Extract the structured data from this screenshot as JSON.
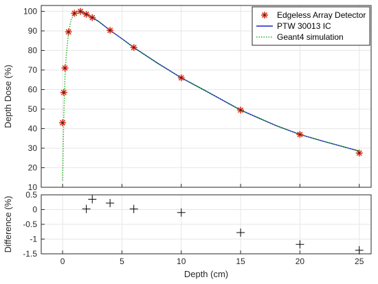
{
  "chart_data": [
    {
      "type": "line",
      "title": "",
      "xlabel": "",
      "ylabel": "Depth Dose (%)",
      "xlim": [
        -1.8,
        26
      ],
      "ylim": [
        10,
        103
      ],
      "x_ticks": [
        0,
        5,
        10,
        15,
        20,
        25
      ],
      "y_ticks": [
        10,
        20,
        30,
        40,
        50,
        60,
        70,
        80,
        90,
        100
      ],
      "y_tick_labels": [
        "10",
        "20",
        "30",
        "40",
        "50",
        "60",
        "70",
        "80",
        "90",
        "100"
      ],
      "grid": true,
      "legend_position": "top-right",
      "series": [
        {
          "name": "Edgeless Array Detector",
          "kind": "marker",
          "marker": "asterisk",
          "color": "#e0301e",
          "x": [
            0.0,
            0.1,
            0.2,
            0.5,
            1.0,
            1.5,
            2.0,
            2.5,
            4.0,
            6.0,
            10.0,
            15.0,
            20.0,
            25.0
          ],
          "y": [
            43,
            58.5,
            71,
            89.5,
            99,
            100,
            98.5,
            96.8,
            90.3,
            81.5,
            66,
            49.5,
            37,
            27.5
          ]
        },
        {
          "name": "PTW 30013 IC",
          "kind": "line",
          "color": "#1f1fbf",
          "x": [
            1.5,
            2.0,
            2.5,
            3.0,
            4.0,
            5.0,
            6.0,
            8.0,
            10.0,
            12.0,
            15.0,
            18.0,
            20.0,
            22.0,
            25.0
          ],
          "y": [
            100,
            98.5,
            96.8,
            95.0,
            90.3,
            86.0,
            81.5,
            73.5,
            66.0,
            59.5,
            49.5,
            41.5,
            37.0,
            33.5,
            28.5
          ]
        },
        {
          "name": "Geant4 simulation",
          "kind": "dotted-line",
          "color": "#22b022",
          "x": [
            0.0,
            0.05,
            0.1,
            0.2,
            0.3,
            0.5,
            0.7,
            1.0,
            1.2,
            1.5,
            2.0,
            2.5,
            3.0,
            4.0,
            5.0,
            6.0,
            8.0,
            10.0,
            12.0,
            15.0,
            18.0,
            20.0,
            22.0,
            25.0
          ],
          "y": [
            13.5,
            30,
            46,
            66,
            77,
            89,
            95.5,
            99,
            99.8,
            100,
            98.5,
            96.8,
            95.0,
            90.3,
            86.0,
            81.5,
            73.5,
            66.0,
            59.5,
            49.5,
            41.5,
            37.0,
            33.5,
            28.5
          ]
        }
      ]
    },
    {
      "type": "scatter",
      "title": "",
      "xlabel": "Depth (cm)",
      "ylabel": "Difference (%)",
      "xlim": [
        -1.8,
        26
      ],
      "ylim": [
        -1.5,
        0.5
      ],
      "x_ticks": [
        0,
        5,
        10,
        15,
        20,
        25
      ],
      "x_tick_labels": [
        "0",
        "5",
        "10",
        "15",
        "20",
        "25"
      ],
      "y_ticks": [
        0.5,
        0,
        -0.5,
        -1,
        -1.5
      ],
      "y_tick_labels": [
        "0.5",
        "0",
        "-0.5",
        "-1",
        "-1.5"
      ],
      "grid": true,
      "series": [
        {
          "kind": "marker",
          "marker": "plus",
          "color": "#000000",
          "x": [
            2.0,
            2.5,
            4.0,
            6.0,
            10.0,
            15.0,
            20.0,
            25.0
          ],
          "y": [
            0.02,
            0.35,
            0.22,
            0.02,
            -0.1,
            -0.78,
            -1.18,
            -1.38
          ]
        }
      ]
    }
  ]
}
